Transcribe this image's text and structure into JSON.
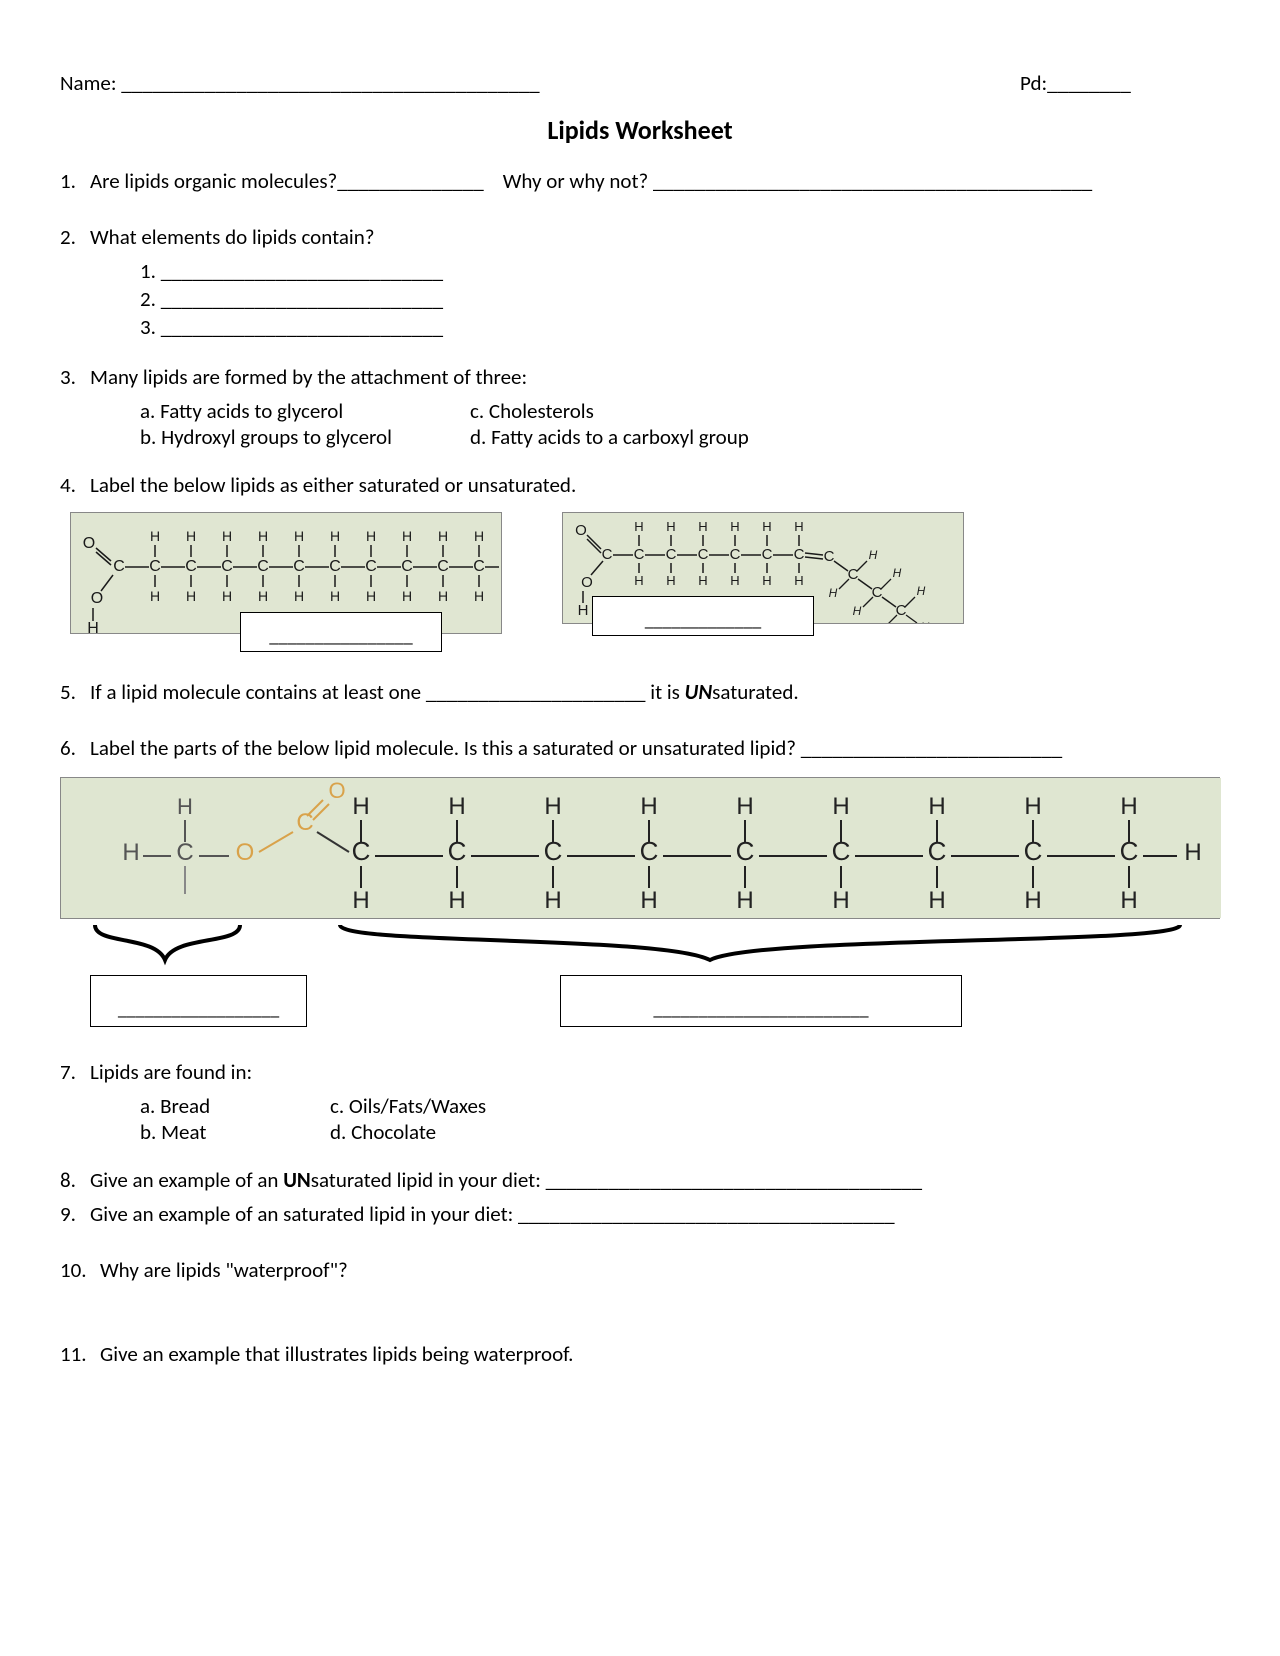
{
  "header": {
    "name_label": "Name: ________________________________________",
    "pd_label": "Pd:________"
  },
  "title": "Lipids Worksheet",
  "questions": {
    "q1": {
      "num": "1.",
      "text_a": "Are lipids organic molecules?______________",
      "text_b": "Why or why not? __________________________________________"
    },
    "q2": {
      "num": "2.",
      "text": "What elements do lipids contain?",
      "sub": [
        "1.    ___________________________",
        "2.    ___________________________",
        "3.    ___________________________"
      ]
    },
    "q3": {
      "num": "3.",
      "text": "Many lipids are formed by the attachment of three:",
      "a": "a.    Fatty acids to glycerol",
      "b": "b.    Hydroxyl groups to glycerol",
      "c": "c.  Cholesterols",
      "d": "d. Fatty acids to a carboxyl group"
    },
    "q4": {
      "num": "4.",
      "text": "Label the below lipids as either saturated or unsaturated.",
      "blank1": "________________",
      "blank2": "_____________"
    },
    "q5": {
      "num": "5.",
      "text_a": "If a lipid molecule contains at least one _____________________ it is ",
      "un": "UN",
      "text_b": "saturated."
    },
    "q6": {
      "num": "6.",
      "text": "Label the parts of the below lipid molecule.  Is this a saturated or unsaturated lipid? _________________________",
      "blank1": "__________________",
      "blank2": "________________________"
    },
    "q7": {
      "num": "7.",
      "text": "Lipids are found in:",
      "a": "a.    Bread",
      "b": "b.    Meat",
      "c": "c. Oils/Fats/Waxes",
      "d": "d. Chocolate"
    },
    "q8": {
      "num": "8.",
      "text_a": "Give an example of an ",
      "un": "UN",
      "text_b": "saturated lipid in your diet: ____________________________________"
    },
    "q9": {
      "num": "9.",
      "text": "Give an example of an saturated lipid in your diet: ____________________________________"
    },
    "q10": {
      "num": "10.",
      "text": "Why are lipids \"waterproof\"?"
    },
    "q11": {
      "num": "11.",
      "text": "Give an example that illustrates lipids being waterproof."
    }
  },
  "chem": {
    "atoms": {
      "H": "H",
      "C": "C",
      "O": "O"
    },
    "colors": {
      "struct_bg": "#e0e6d2",
      "bond": "#3a3a3a",
      "atom": "#1a1a1a",
      "highlight": "#d9a24a"
    }
  }
}
